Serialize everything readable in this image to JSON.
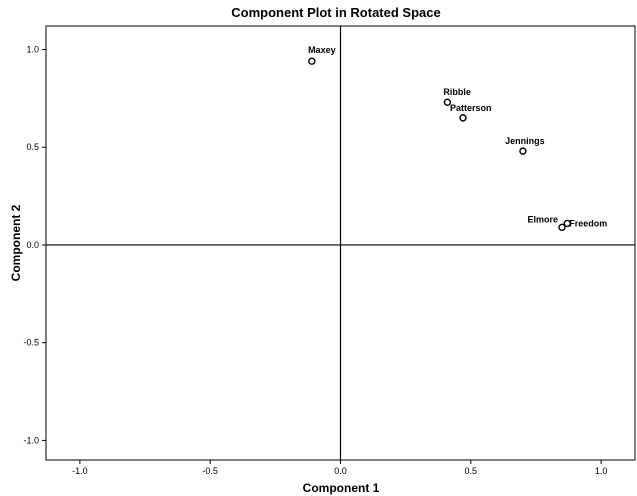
{
  "chart_data": {
    "type": "scatter",
    "title": "Component Plot in Rotated Space",
    "xlabel": "Component 1",
    "ylabel": "Component 2",
    "xlim": [
      -1.13,
      1.13
    ],
    "ylim": [
      -1.1,
      1.12
    ],
    "x_ticks": [
      {
        "value": -1.0,
        "label": "-1.0"
      },
      {
        "value": -0.5,
        "label": "-0.5"
      },
      {
        "value": 0.0,
        "label": "0.0"
      },
      {
        "value": 0.5,
        "label": "0.5"
      },
      {
        "value": 1.0,
        "label": "1.0"
      }
    ],
    "y_ticks": [
      {
        "value": 1.0,
        "label": "1.0"
      },
      {
        "value": 0.5,
        "label": "0.5"
      },
      {
        "value": 0.0,
        "label": "0.0"
      },
      {
        "value": -0.5,
        "label": "-0.5"
      },
      {
        "value": -1.0,
        "label": "-1.0"
      }
    ],
    "grid": false,
    "reference_lines": {
      "x": 0,
      "y": 0
    },
    "points": [
      {
        "label": "Maxey",
        "x": -0.11,
        "y": 0.94
      },
      {
        "label": "Ribble",
        "x": 0.41,
        "y": 0.73
      },
      {
        "label": "Patterson",
        "x": 0.47,
        "y": 0.65
      },
      {
        "label": "Jennings",
        "x": 0.7,
        "y": 0.48
      },
      {
        "label": "Elmore",
        "x": 0.85,
        "y": 0.09
      },
      {
        "label": "Freedom",
        "x": 0.87,
        "y": 0.11
      }
    ]
  }
}
